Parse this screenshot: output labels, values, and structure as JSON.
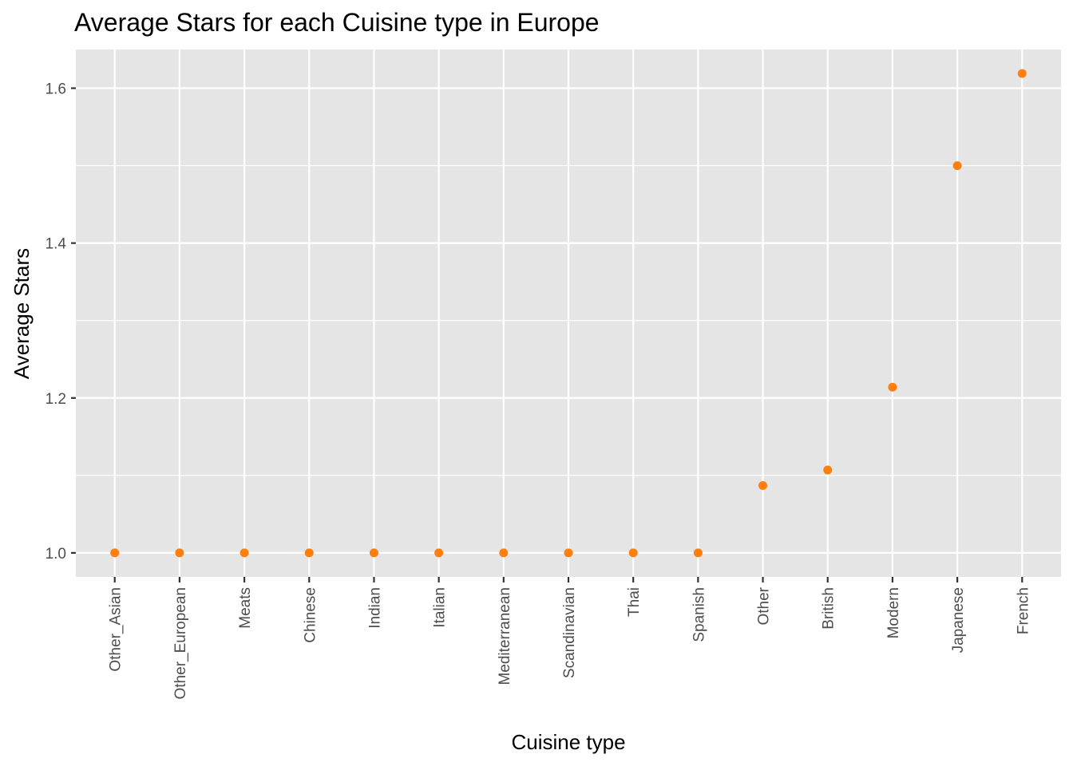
{
  "chart_data": {
    "type": "scatter",
    "title": "Average Stars for each Cuisine type in Europe",
    "xlabel": "Cuisine type",
    "ylabel": "Average Stars",
    "categories": [
      "Other_Asian",
      "Other_European",
      "Meats",
      "Chinese",
      "Indian",
      "Italian",
      "Mediterranean",
      "Scandinavian",
      "Thai",
      "Spanish",
      "Other",
      "British",
      "Modern",
      "Japanese",
      "French"
    ],
    "values": [
      1.0,
      1.0,
      1.0,
      1.0,
      1.0,
      1.0,
      1.0,
      1.0,
      1.0,
      1.0,
      1.087,
      1.107,
      1.214,
      1.5,
      1.619
    ],
    "ylim": [
      0.969,
      1.65
    ],
    "y_ticks": [
      1.0,
      1.2,
      1.4,
      1.6
    ],
    "y_tick_labels": [
      "1.0",
      "1.2",
      "1.4",
      "1.6"
    ],
    "grid": true,
    "point_color": "#ff7f0e",
    "panel_color": "#e5e5e5"
  }
}
